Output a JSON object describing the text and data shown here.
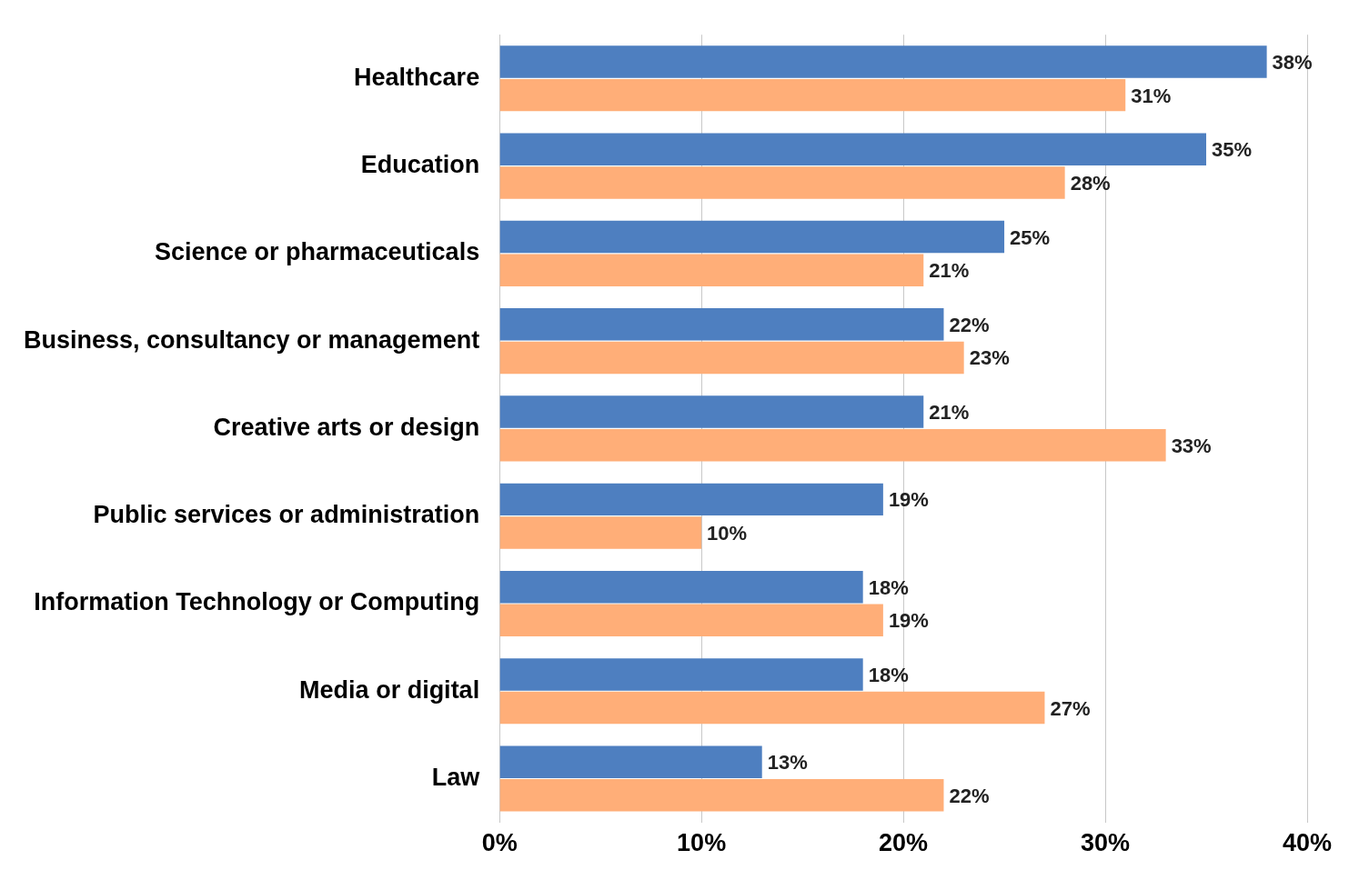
{
  "chart_data": {
    "type": "bar",
    "orientation": "horizontal",
    "categories": [
      "Healthcare",
      "Education",
      "Science or pharmaceuticals",
      "Business, consultancy or management",
      "Creative arts or design",
      "Public services or administration",
      "Information Technology or Computing",
      "Media or digital",
      "Law"
    ],
    "series": [
      {
        "color": "#4e7fc0",
        "values": [
          38,
          35,
          25,
          22,
          21,
          19,
          18,
          18,
          13
        ],
        "value_labels": [
          "38%",
          "35%",
          "25%",
          "22%",
          "21%",
          "19%",
          "18%",
          "18%",
          "13%"
        ]
      },
      {
        "color": "#ffae78",
        "values": [
          31,
          28,
          21,
          23,
          33,
          10,
          19,
          27,
          22
        ],
        "value_labels": [
          "31%",
          "28%",
          "21%",
          "23%",
          "33%",
          "10%",
          "19%",
          "27%",
          "22%"
        ]
      }
    ],
    "xlim": [
      0,
      40
    ],
    "xticks": [
      {
        "value": 0,
        "label": "0%"
      },
      {
        "value": 10,
        "label": "10%"
      },
      {
        "value": 20,
        "label": "20%"
      },
      {
        "value": 30,
        "label": "30%"
      },
      {
        "value": 40,
        "label": "40%"
      }
    ],
    "grid": "x",
    "legend": false
  }
}
